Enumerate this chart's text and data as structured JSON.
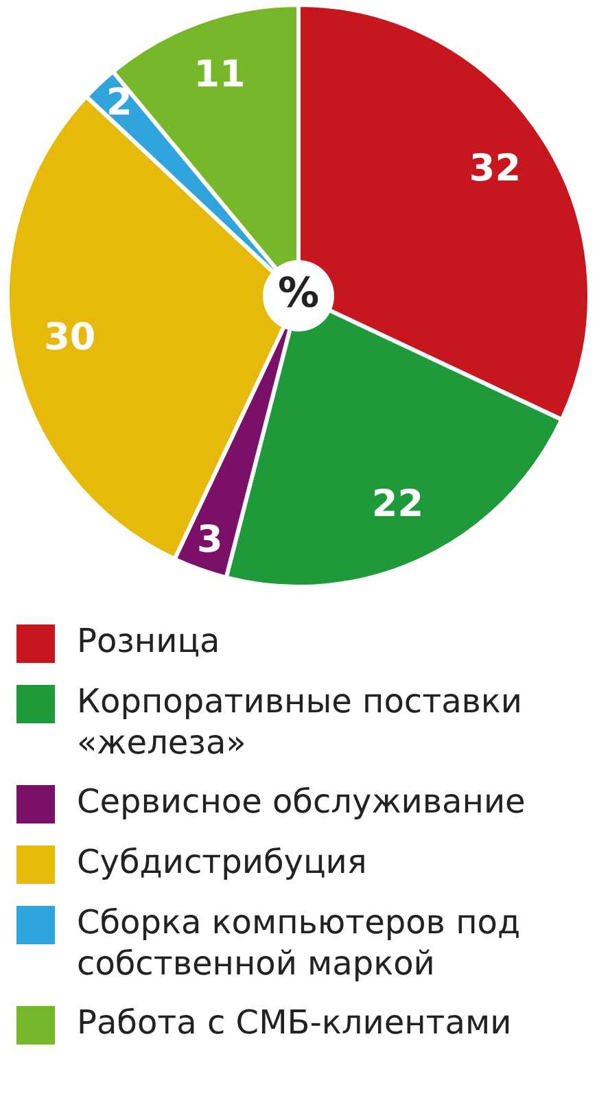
{
  "chart_data": {
    "type": "pie",
    "categories": [
      "Розница",
      "Корпоративные поставки «железа»",
      "Сервисное обслуживание",
      "Субдистрибуция",
      "Сборка компьютеров под собственной маркой",
      "Работа с СМБ-клиентами"
    ],
    "values": [
      32,
      22,
      3,
      30,
      2,
      11
    ],
    "colors": [
      "#c8161e",
      "#1f9a3a",
      "#7a1068",
      "#e6b90b",
      "#2fa4dd",
      "#76b82a"
    ],
    "data_labels": true,
    "legend": "bottom",
    "annotations": [
      "%"
    ]
  }
}
